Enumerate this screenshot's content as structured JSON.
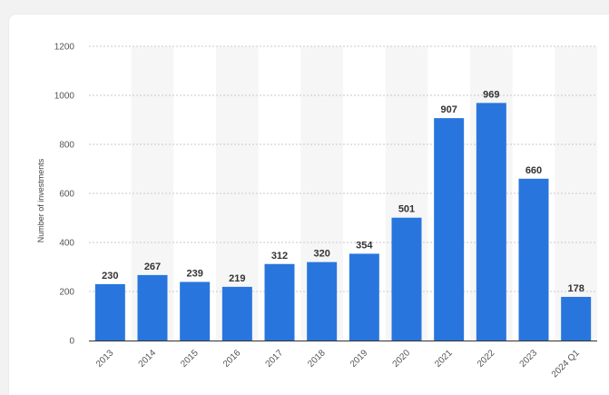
{
  "chart_data": {
    "type": "bar",
    "categories": [
      "2013",
      "2014",
      "2015",
      "2016",
      "2017",
      "2018",
      "2019",
      "2020",
      "2021",
      "2022",
      "2023",
      "2024 Q1"
    ],
    "values": [
      230,
      267,
      239,
      219,
      312,
      320,
      354,
      501,
      907,
      969,
      660,
      178
    ],
    "value_labels": [
      "230",
      "267",
      "239",
      "219",
      "312",
      "320",
      "354",
      "501",
      "907",
      "969",
      "660",
      "178"
    ],
    "title": "",
    "xlabel": "",
    "ylabel": "Number of investments",
    "ylim": [
      0,
      1200
    ],
    "yticks": [
      0,
      200,
      400,
      600,
      800,
      1000,
      1200
    ],
    "ytick_labels": [
      "0",
      "200",
      "400",
      "600",
      "800",
      "1000",
      "1200"
    ],
    "grid": true,
    "grid_style": "dotted",
    "alternating_column_shading": true,
    "legend": "none",
    "colors": {
      "bar": "#2876dd",
      "grid": "#c9c9c9",
      "band": "#f6f6f6",
      "axis": "#333333"
    }
  }
}
